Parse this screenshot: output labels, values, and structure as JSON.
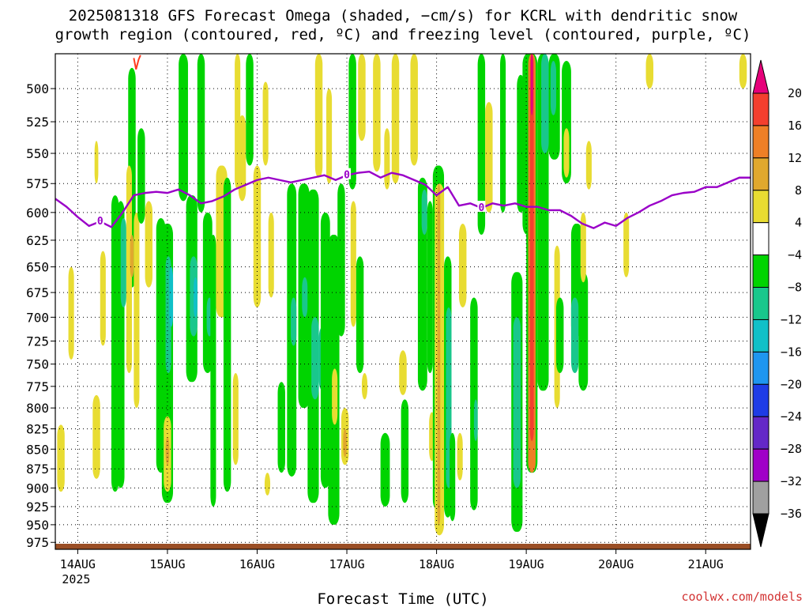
{
  "title": {
    "line1": "2025081318 GFS Forecast Omega (shaded, −cm/s) for KCRL with dendritic snow",
    "line2": "growth region (contoured, red, ºC) and freezing level (contoured, purple, ºC)"
  },
  "credit": "coolwx.com/models",
  "colors": {
    "freezing_line": "#9a00c8",
    "dgz_line": "#ff3b1f",
    "terrain": "#9a4e25",
    "grid": "#000000",
    "credit": "#d23232"
  },
  "chart_data": {
    "type": "heatmap",
    "title": "2025081318 GFS Forecast Omega (shaded, −cm/s) for KCRL with dendritic snow growth region (contoured, red, ºC) and freezing level (contoured, purple, ºC)",
    "xlabel": "Forecast Time (UTC)",
    "ylabel": "",
    "x_range_hours": [
      0,
      186
    ],
    "x_ticks": [
      {
        "hour": 6,
        "label": "14AUG",
        "sublabel": "2025"
      },
      {
        "hour": 30,
        "label": "15AUG",
        "sublabel": ""
      },
      {
        "hour": 54,
        "label": "16AUG",
        "sublabel": ""
      },
      {
        "hour": 78,
        "label": "17AUG",
        "sublabel": ""
      },
      {
        "hour": 102,
        "label": "18AUG",
        "sublabel": ""
      },
      {
        "hour": 126,
        "label": "19AUG",
        "sublabel": ""
      },
      {
        "hour": 150,
        "label": "20AUG",
        "sublabel": ""
      },
      {
        "hour": 174,
        "label": "21AUG",
        "sublabel": ""
      }
    ],
    "y_scale": "log",
    "y_range_hPa": [
      475,
      985
    ],
    "y_ticks": [
      500,
      525,
      550,
      575,
      600,
      625,
      650,
      675,
      700,
      725,
      750,
      775,
      800,
      825,
      850,
      875,
      900,
      925,
      950,
      975
    ],
    "colorbar": {
      "labels": [
        "20",
        "16",
        "12",
        "8",
        "4",
        "−4",
        "−8",
        "−12",
        "−16",
        "−20",
        "−24",
        "−28",
        "−32",
        "−36"
      ],
      "bins": [
        {
          "from": 20,
          "to": 24,
          "color": "#e6007a"
        },
        {
          "from": 16,
          "to": 20,
          "color": "#f43f2e"
        },
        {
          "from": 12,
          "to": 16,
          "color": "#ee7f26"
        },
        {
          "from": 8,
          "to": 12,
          "color": "#e0a82e"
        },
        {
          "from": 4,
          "to": 8,
          "color": "#e8dc32"
        },
        {
          "from": -4,
          "to": 4,
          "color": "#ffffff"
        },
        {
          "from": -8,
          "to": -4,
          "color": "#00d400"
        },
        {
          "from": -12,
          "to": -8,
          "color": "#19c78c"
        },
        {
          "from": -16,
          "to": -12,
          "color": "#10c0c8"
        },
        {
          "from": -20,
          "to": -16,
          "color": "#1e96f0"
        },
        {
          "from": -24,
          "to": -20,
          "color": "#1e3ce6"
        },
        {
          "from": -28,
          "to": -24,
          "color": "#6428c8"
        },
        {
          "from": -32,
          "to": -28,
          "color": "#a000c8"
        },
        {
          "from": -36,
          "to": -32,
          "color": "#a0a0a0"
        },
        {
          "from": -40,
          "to": -36,
          "color": "#000000"
        }
      ]
    },
    "freezing_level": {
      "label": "0",
      "hours": [
        0,
        3,
        6,
        9,
        12,
        15,
        18,
        21,
        24,
        27,
        30,
        33,
        36,
        39,
        42,
        45,
        48,
        51,
        54,
        57,
        60,
        63,
        66,
        69,
        72,
        75,
        78,
        81,
        84,
        87,
        90,
        93,
        96,
        99,
        102,
        105,
        108,
        111,
        114,
        117,
        120,
        123,
        126,
        129,
        132,
        135,
        138,
        141,
        144,
        147,
        150,
        153,
        156,
        159,
        162,
        165,
        168,
        171,
        174,
        177,
        180,
        183,
        186
      ],
      "hPa": [
        588,
        595,
        604,
        612,
        608,
        613,
        600,
        585,
        583,
        582,
        583,
        580,
        585,
        592,
        590,
        586,
        580,
        576,
        572,
        570,
        572,
        574,
        572,
        570,
        568,
        572,
        568,
        566,
        565,
        570,
        566,
        568,
        572,
        576,
        585,
        578,
        594,
        592,
        596,
        592,
        594,
        592,
        595,
        595,
        598,
        598,
        603,
        610,
        614,
        609,
        612,
        605,
        600,
        594,
        590,
        585,
        583,
        582,
        578,
        578,
        574,
        570,
        570
      ]
    },
    "dgz_contour": {
      "label": "dendritic snow growth region (red)",
      "hours": [
        21,
        21.6,
        22.3,
        22.8
      ],
      "hPa": [
        478,
        486,
        479,
        476
      ]
    },
    "terrain_surface_hPa": 977,
    "omega_cells": [
      {
        "x0": 0.5,
        "x1": 2.5,
        "p0": 820,
        "p1": 905,
        "v": 6
      },
      {
        "x0": 3.5,
        "x1": 5,
        "p0": 650,
        "p1": 745,
        "v": 6
      },
      {
        "x0": 10,
        "x1": 12,
        "p0": 785,
        "p1": 888,
        "v": 6
      },
      {
        "x0": 10.5,
        "x1": 11.5,
        "p0": 540,
        "p1": 575,
        "v": 6
      },
      {
        "x0": 12,
        "x1": 13.5,
        "p0": 635,
        "p1": 730,
        "v": 6
      },
      {
        "x0": 15,
        "x1": 17,
        "p0": 585,
        "p1": 905,
        "v": -6
      },
      {
        "x0": 16.5,
        "x1": 18.5,
        "p0": 590,
        "p1": 900,
        "v": -6
      },
      {
        "x0": 17.5,
        "x1": 19,
        "p0": 605,
        "p1": 690,
        "v": -10
      },
      {
        "x0": 19.5,
        "x1": 21.5,
        "p0": 485,
        "p1": 670,
        "v": -6
      },
      {
        "x0": 19,
        "x1": 20.5,
        "p0": 560,
        "p1": 760,
        "v": 6
      },
      {
        "x0": 20,
        "x1": 21,
        "p0": 620,
        "p1": 660,
        "v": 10
      },
      {
        "x0": 21,
        "x1": 22.5,
        "p0": 600,
        "p1": 800,
        "v": 6
      },
      {
        "x0": 22,
        "x1": 24,
        "p0": 530,
        "p1": 610,
        "v": -6
      },
      {
        "x0": 24,
        "x1": 26,
        "p0": 590,
        "p1": 670,
        "v": 6
      },
      {
        "x0": 27,
        "x1": 29.5,
        "p0": 605,
        "p1": 880,
        "v": -6
      },
      {
        "x0": 28.5,
        "x1": 31.5,
        "p0": 610,
        "p1": 920,
        "v": -6
      },
      {
        "x0": 29.5,
        "x1": 31,
        "p0": 640,
        "p1": 760,
        "v": -10
      },
      {
        "x0": 30.5,
        "x1": 31.5,
        "p0": 650,
        "p1": 710,
        "v": -14
      },
      {
        "x0": 29,
        "x1": 31,
        "p0": 810,
        "p1": 905,
        "v": 6
      },
      {
        "x0": 29.5,
        "x1": 30.5,
        "p0": 835,
        "p1": 870,
        "v": 10
      },
      {
        "x0": 33,
        "x1": 35.5,
        "p0": 475,
        "p1": 590,
        "v": -6
      },
      {
        "x0": 35,
        "x1": 38,
        "p0": 585,
        "p1": 770,
        "v": -6
      },
      {
        "x0": 36,
        "x1": 38,
        "p0": 640,
        "p1": 720,
        "v": -10
      },
      {
        "x0": 37,
        "x1": 38,
        "p0": 660,
        "p1": 700,
        "v": -14
      },
      {
        "x0": 38,
        "x1": 40,
        "p0": 475,
        "p1": 600,
        "v": -6
      },
      {
        "x0": 39.5,
        "x1": 42,
        "p0": 600,
        "p1": 760,
        "v": -6
      },
      {
        "x0": 40.5,
        "x1": 42,
        "p0": 680,
        "p1": 720,
        "v": -10
      },
      {
        "x0": 41.5,
        "x1": 43,
        "p0": 620,
        "p1": 925,
        "v": -6
      },
      {
        "x0": 43,
        "x1": 46,
        "p0": 560,
        "p1": 700,
        "v": 6
      },
      {
        "x0": 45,
        "x1": 47,
        "p0": 570,
        "p1": 905,
        "v": -6
      },
      {
        "x0": 47.5,
        "x1": 49,
        "p0": 760,
        "p1": 870,
        "v": 6
      },
      {
        "x0": 48,
        "x1": 49.5,
        "p0": 475,
        "p1": 580,
        "v": 6
      },
      {
        "x0": 49,
        "x1": 51,
        "p0": 520,
        "p1": 590,
        "v": 6
      },
      {
        "x0": 51,
        "x1": 53,
        "p0": 475,
        "p1": 560,
        "v": -6
      },
      {
        "x0": 53,
        "x1": 55,
        "p0": 560,
        "p1": 690,
        "v": 6
      },
      {
        "x0": 55.5,
        "x1": 57,
        "p0": 495,
        "p1": 560,
        "v": 6
      },
      {
        "x0": 56,
        "x1": 57.5,
        "p0": 880,
        "p1": 910,
        "v": 6
      },
      {
        "x0": 57,
        "x1": 58.5,
        "p0": 600,
        "p1": 680,
        "v": 6
      },
      {
        "x0": 59.5,
        "x1": 61.5,
        "p0": 770,
        "p1": 880,
        "v": -6
      },
      {
        "x0": 62,
        "x1": 64.5,
        "p0": 575,
        "p1": 885,
        "v": -6
      },
      {
        "x0": 63,
        "x1": 64.5,
        "p0": 680,
        "p1": 730,
        "v": -10
      },
      {
        "x0": 65,
        "x1": 68,
        "p0": 575,
        "p1": 800,
        "v": -6
      },
      {
        "x0": 66,
        "x1": 67.5,
        "p0": 660,
        "p1": 700,
        "v": -10
      },
      {
        "x0": 67.5,
        "x1": 70.5,
        "p0": 580,
        "p1": 920,
        "v": -6
      },
      {
        "x0": 68.5,
        "x1": 70.5,
        "p0": 700,
        "p1": 790,
        "v": -10
      },
      {
        "x0": 69.5,
        "x1": 71.5,
        "p0": 475,
        "p1": 570,
        "v": 6
      },
      {
        "x0": 70.5,
        "x1": 72.5,
        "p0": 710,
        "p1": 780,
        "v": -10
      },
      {
        "x0": 71,
        "x1": 73.5,
        "p0": 600,
        "p1": 900,
        "v": -6
      },
      {
        "x0": 72.5,
        "x1": 74,
        "p0": 500,
        "p1": 575,
        "v": 6
      },
      {
        "x0": 73,
        "x1": 76,
        "p0": 620,
        "p1": 950,
        "v": -6
      },
      {
        "x0": 74,
        "x1": 75.5,
        "p0": 755,
        "p1": 820,
        "v": 6
      },
      {
        "x0": 75.5,
        "x1": 77.5,
        "p0": 575,
        "p1": 720,
        "v": -6
      },
      {
        "x0": 76.5,
        "x1": 78.5,
        "p0": 800,
        "p1": 870,
        "v": 6
      },
      {
        "x0": 77,
        "x1": 78,
        "p0": 825,
        "p1": 860,
        "v": 10
      },
      {
        "x0": 78.5,
        "x1": 80.5,
        "p0": 475,
        "p1": 580,
        "v": -6
      },
      {
        "x0": 79,
        "x1": 80.5,
        "p0": 590,
        "p1": 710,
        "v": 6
      },
      {
        "x0": 80.5,
        "x1": 82.5,
        "p0": 640,
        "p1": 760,
        "v": -6
      },
      {
        "x0": 81,
        "x1": 83,
        "p0": 475,
        "p1": 540,
        "v": 6
      },
      {
        "x0": 82,
        "x1": 83.5,
        "p0": 760,
        "p1": 790,
        "v": 6
      },
      {
        "x0": 85,
        "x1": 87,
        "p0": 475,
        "p1": 565,
        "v": 6
      },
      {
        "x0": 87,
        "x1": 89.5,
        "p0": 830,
        "p1": 925,
        "v": -6
      },
      {
        "x0": 88,
        "x1": 89.5,
        "p0": 530,
        "p1": 580,
        "v": 6
      },
      {
        "x0": 90,
        "x1": 92,
        "p0": 475,
        "p1": 575,
        "v": 6
      },
      {
        "x0": 92,
        "x1": 94,
        "p0": 735,
        "p1": 785,
        "v": 6
      },
      {
        "x0": 92.5,
        "x1": 94.5,
        "p0": 790,
        "p1": 920,
        "v": -6
      },
      {
        "x0": 95,
        "x1": 97,
        "p0": 475,
        "p1": 560,
        "v": 6
      },
      {
        "x0": 97,
        "x1": 99.5,
        "p0": 570,
        "p1": 780,
        "v": -6
      },
      {
        "x0": 98,
        "x1": 99.5,
        "p0": 580,
        "p1": 620,
        "v": -10
      },
      {
        "x0": 99.5,
        "x1": 101,
        "p0": 590,
        "p1": 760,
        "v": -6
      },
      {
        "x0": 100,
        "x1": 101.5,
        "p0": 805,
        "p1": 865,
        "v": 6
      },
      {
        "x0": 101,
        "x1": 104,
        "p0": 560,
        "p1": 930,
        "v": -6
      },
      {
        "x0": 101.5,
        "x1": 103.5,
        "p0": 620,
        "p1": 920,
        "v": -10
      },
      {
        "x0": 101.5,
        "x1": 104,
        "p0": 575,
        "p1": 965,
        "v": 6
      },
      {
        "x0": 102.2,
        "x1": 103,
        "p0": 575,
        "p1": 950,
        "v": 10
      },
      {
        "x0": 104,
        "x1": 106,
        "p0": 640,
        "p1": 940,
        "v": -6
      },
      {
        "x0": 104.5,
        "x1": 106,
        "p0": 690,
        "p1": 900,
        "v": -10
      },
      {
        "x0": 105.5,
        "x1": 107,
        "p0": 830,
        "p1": 945,
        "v": -6
      },
      {
        "x0": 107.5,
        "x1": 109,
        "p0": 830,
        "p1": 890,
        "v": 6
      },
      {
        "x0": 108,
        "x1": 110,
        "p0": 610,
        "p1": 690,
        "v": 6
      },
      {
        "x0": 111,
        "x1": 113,
        "p0": 680,
        "p1": 930,
        "v": -6
      },
      {
        "x0": 112,
        "x1": 113,
        "p0": 790,
        "p1": 840,
        "v": -10
      },
      {
        "x0": 113,
        "x1": 115,
        "p0": 475,
        "p1": 620,
        "v": -6
      },
      {
        "x0": 115,
        "x1": 117,
        "p0": 510,
        "p1": 600,
        "v": 6
      },
      {
        "x0": 119,
        "x1": 120.5,
        "p0": 475,
        "p1": 600,
        "v": -6
      },
      {
        "x0": 122,
        "x1": 125,
        "p0": 655,
        "p1": 960,
        "v": -6
      },
      {
        "x0": 122.5,
        "x1": 124.5,
        "p0": 700,
        "p1": 900,
        "v": -10
      },
      {
        "x0": 123.5,
        "x1": 125.5,
        "p0": 490,
        "p1": 600,
        "v": -6
      },
      {
        "x0": 125,
        "x1": 128,
        "p0": 475,
        "p1": 620,
        "v": -6
      },
      {
        "x0": 126,
        "x1": 129,
        "p0": 475,
        "p1": 880,
        "v": -6
      },
      {
        "x0": 126.5,
        "x1": 128.5,
        "p0": 475,
        "p1": 880,
        "v": 14
      },
      {
        "x0": 127,
        "x1": 128,
        "p0": 475,
        "p1": 840,
        "v": 18
      },
      {
        "x0": 127.2,
        "x1": 127.8,
        "p0": 475,
        "p1": 520,
        "v": 22
      },
      {
        "x0": 129,
        "x1": 132,
        "p0": 475,
        "p1": 780,
        "v": -6
      },
      {
        "x0": 130,
        "x1": 132,
        "p0": 475,
        "p1": 550,
        "v": -10
      },
      {
        "x0": 132,
        "x1": 135,
        "p0": 475,
        "p1": 555,
        "v": -6
      },
      {
        "x0": 132.5,
        "x1": 134,
        "p0": 480,
        "p1": 520,
        "v": -10
      },
      {
        "x0": 133.5,
        "x1": 135,
        "p0": 630,
        "p1": 800,
        "v": 6
      },
      {
        "x0": 134,
        "x1": 136,
        "p0": 680,
        "p1": 760,
        "v": -6
      },
      {
        "x0": 135.5,
        "x1": 138,
        "p0": 480,
        "p1": 575,
        "v": -6
      },
      {
        "x0": 136,
        "x1": 137.5,
        "p0": 530,
        "p1": 570,
        "v": 6
      },
      {
        "x0": 138,
        "x1": 141,
        "p0": 610,
        "p1": 720,
        "v": -6
      },
      {
        "x0": 138,
        "x1": 140,
        "p0": 680,
        "p1": 760,
        "v": -10
      },
      {
        "x0": 140,
        "x1": 142.5,
        "p0": 655,
        "p1": 780,
        "v": -6
      },
      {
        "x0": 140.5,
        "x1": 142,
        "p0": 600,
        "p1": 665,
        "v": 6
      },
      {
        "x0": 142,
        "x1": 143.5,
        "p0": 540,
        "p1": 580,
        "v": 6
      },
      {
        "x0": 152,
        "x1": 153.5,
        "p0": 600,
        "p1": 660,
        "v": 6
      },
      {
        "x0": 158,
        "x1": 160,
        "p0": 475,
        "p1": 500,
        "v": 6
      },
      {
        "x0": 183,
        "x1": 185,
        "p0": 475,
        "p1": 500,
        "v": 6
      }
    ]
  }
}
